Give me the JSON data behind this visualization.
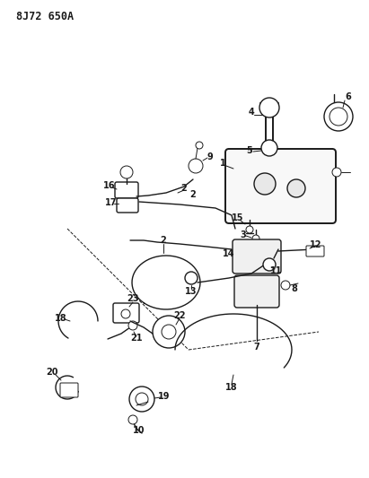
{
  "title": "8J72 650A",
  "bg_color": "#ffffff",
  "line_color": "#1a1a1a",
  "fig_width": 4.11,
  "fig_height": 5.33,
  "dpi": 100
}
